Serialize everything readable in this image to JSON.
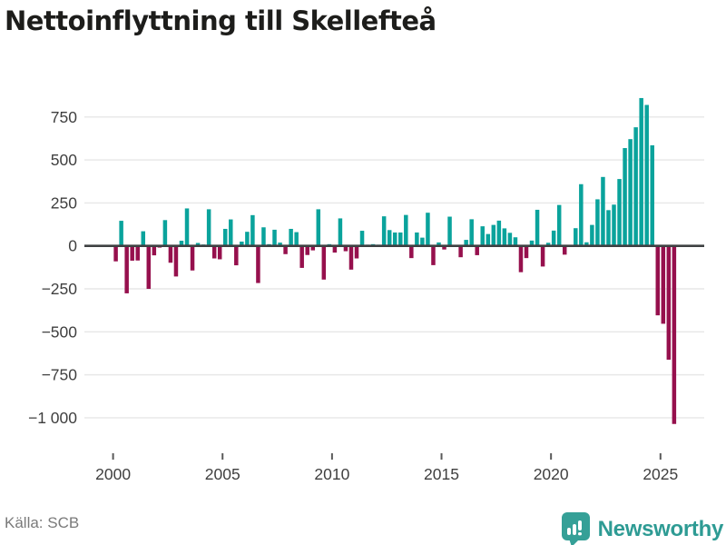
{
  "title": "Nettoinflyttning till Skellefteå",
  "source": "Källa: SCB",
  "logo": {
    "text": "Newsworthy",
    "badge_color": "#35a097",
    "text_color": "#2e9b94",
    "icon": "bar-chart-exclamation-pin"
  },
  "chart_data": {
    "type": "bar",
    "title": "Nettoinflyttning till Skellefteå",
    "x_ticks": [
      "2000",
      "2005",
      "2010",
      "2015",
      "2020",
      "2025"
    ],
    "y_ticks": [
      750,
      500,
      250,
      0,
      -250,
      -500,
      -750,
      -1000
    ],
    "y_tick_labels": [
      "750",
      "500",
      "250",
      "0",
      "−250",
      "−500",
      "−750",
      "−1 000"
    ],
    "ylim": [
      -1100,
      900
    ],
    "grid": true,
    "positive_color": "#0aa39c",
    "negative_color": "#96104d",
    "zero_line_color": "#3e4042",
    "grid_color": "#e7e7e7",
    "axis_text_color": "#3f3f3f",
    "quarters": [
      "2000 Q1",
      "2000 Q2",
      "2000 Q3",
      "2000 Q4",
      "2001 Q1",
      "2001 Q2",
      "2001 Q3",
      "2001 Q4",
      "2002 Q1",
      "2002 Q2",
      "2002 Q3",
      "2002 Q4",
      "2003 Q1",
      "2003 Q2",
      "2003 Q3",
      "2003 Q4",
      "2004 Q1",
      "2004 Q2",
      "2004 Q3",
      "2004 Q4",
      "2005 Q1",
      "2005 Q2",
      "2005 Q3",
      "2005 Q4",
      "2006 Q1",
      "2006 Q2",
      "2006 Q3",
      "2006 Q4",
      "2007 Q1",
      "2007 Q2",
      "2007 Q3",
      "2007 Q4",
      "2008 Q1",
      "2008 Q2",
      "2008 Q3",
      "2008 Q4",
      "2009 Q1",
      "2009 Q2",
      "2009 Q3",
      "2009 Q4",
      "2010 Q1",
      "2010 Q2",
      "2010 Q3",
      "2010 Q4",
      "2011 Q1",
      "2011 Q2",
      "2011 Q3",
      "2011 Q4",
      "2012 Q1",
      "2012 Q2",
      "2012 Q3",
      "2012 Q4",
      "2013 Q1",
      "2013 Q2",
      "2013 Q3",
      "2013 Q4",
      "2014 Q1",
      "2014 Q2",
      "2014 Q3",
      "2014 Q4",
      "2015 Q1",
      "2015 Q2",
      "2015 Q3",
      "2015 Q4",
      "2016 Q1",
      "2016 Q2",
      "2016 Q3",
      "2016 Q4",
      "2017 Q1",
      "2017 Q2",
      "2017 Q3",
      "2017 Q4",
      "2018 Q1",
      "2018 Q2",
      "2018 Q3",
      "2018 Q4",
      "2019 Q1",
      "2019 Q2",
      "2019 Q3",
      "2019 Q4",
      "2020 Q1",
      "2020 Q2",
      "2020 Q3",
      "2020 Q4",
      "2021 Q1",
      "2021 Q2",
      "2021 Q3",
      "2021 Q4",
      "2022 Q1",
      "2022 Q2",
      "2022 Q3",
      "2022 Q4",
      "2023 Q1",
      "2023 Q2",
      "2023 Q3",
      "2023 Q4",
      "2024 Q1",
      "2024 Q2",
      "2024 Q3",
      "2024 Q4",
      "2025 Q1",
      "2025 Q2",
      "2025 Q3"
    ],
    "values": [
      -90,
      146,
      -276,
      -86,
      -85,
      85,
      -250,
      -55,
      -10,
      150,
      -98,
      -178,
      30,
      218,
      -143,
      17,
      8,
      213,
      -73,
      -78,
      99,
      154,
      -113,
      25,
      82,
      179,
      -216,
      108,
      10,
      94,
      19,
      -48,
      99,
      80,
      -128,
      -53,
      -26,
      213,
      -196,
      10,
      -39,
      160,
      -31,
      -138,
      -73,
      88,
      7,
      10,
      7,
      172,
      92,
      78,
      78,
      180,
      -71,
      78,
      48,
      193,
      -112,
      20,
      -21,
      170,
      5,
      -66,
      35,
      155,
      -54,
      114,
      69,
      122,
      147,
      102,
      76,
      50,
      -153,
      -71,
      31,
      210,
      -120,
      18,
      89,
      238,
      -51,
      5,
      103,
      359,
      21,
      122,
      271,
      401,
      208,
      240,
      389,
      569,
      621,
      690,
      860,
      820,
      585,
      -404,
      -453,
      -662,
      -1036
    ]
  }
}
